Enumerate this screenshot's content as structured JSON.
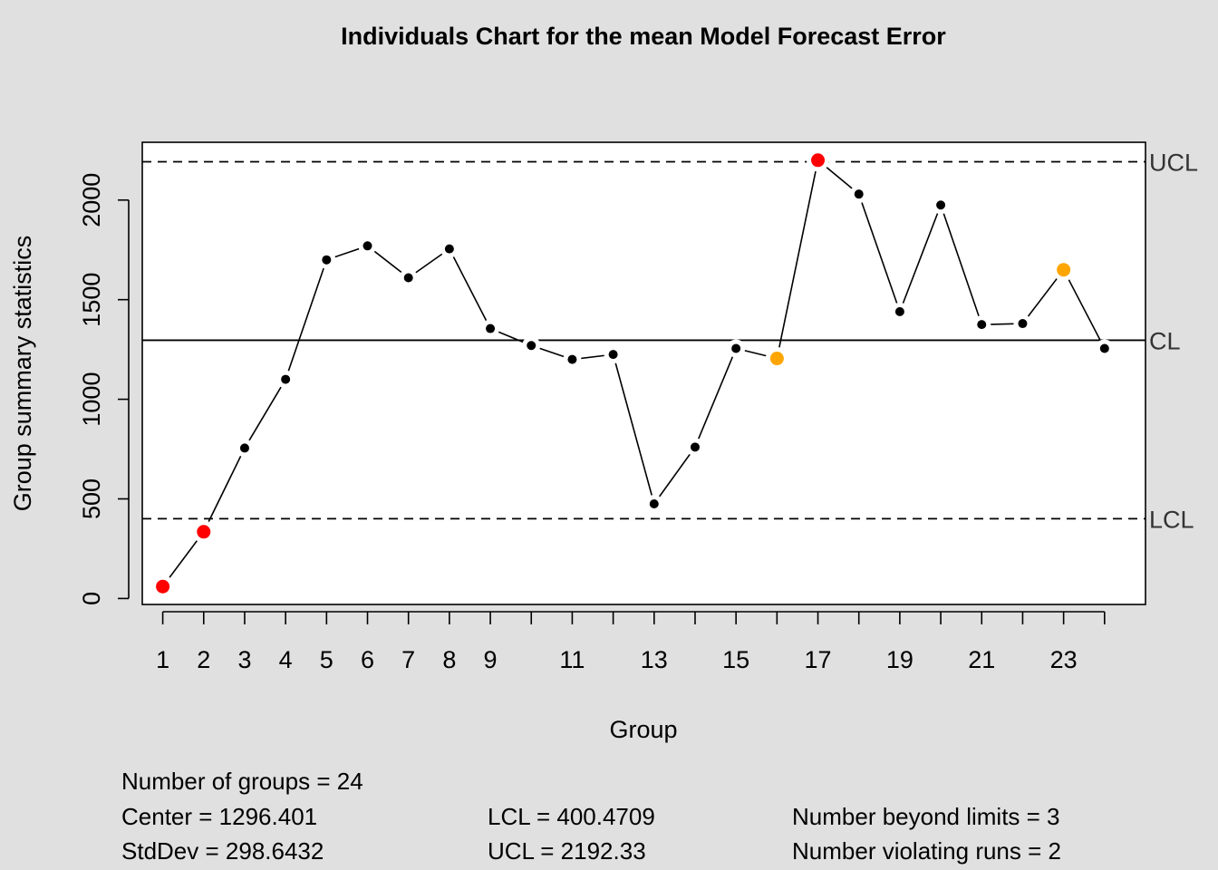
{
  "chart_data": {
    "type": "line",
    "title": "Individuals Chart for the mean Model Forecast Error",
    "xlabel": "Group",
    "ylabel": "Group summary statistics",
    "xlim": [
      0.5,
      25
    ],
    "ylim": [
      -30,
      2290
    ],
    "x": [
      1,
      2,
      3,
      4,
      5,
      6,
      7,
      8,
      9,
      10,
      11,
      12,
      13,
      14,
      15,
      16,
      17,
      18,
      19,
      20,
      21,
      22,
      23,
      24
    ],
    "values": [
      60,
      335,
      755,
      1100,
      1700,
      1770,
      1610,
      1755,
      1355,
      1270,
      1200,
      1225,
      475,
      760,
      1255,
      1205,
      2200,
      2030,
      1440,
      1975,
      1375,
      1380,
      1650,
      1255
    ],
    "point_status": [
      "beyond",
      "beyond",
      "normal",
      "normal",
      "normal",
      "normal",
      "normal",
      "normal",
      "normal",
      "normal",
      "normal",
      "normal",
      "normal",
      "normal",
      "normal",
      "violating",
      "beyond",
      "normal",
      "normal",
      "normal",
      "normal",
      "normal",
      "violating",
      "normal"
    ],
    "x_ticks": [
      1,
      2,
      3,
      4,
      5,
      6,
      7,
      8,
      9,
      10,
      11,
      12,
      13,
      14,
      15,
      16,
      17,
      18,
      19,
      20,
      21,
      22,
      23,
      24
    ],
    "x_tick_labels": [
      "1",
      "2",
      "3",
      "4",
      "5",
      "6",
      "7",
      "8",
      "9",
      "",
      "11",
      "",
      "13",
      "",
      "15",
      "",
      "17",
      "",
      "19",
      "",
      "21",
      "",
      "23",
      ""
    ],
    "y_ticks": [
      0,
      500,
      1000,
      1500,
      2000
    ],
    "y_tick_labels": [
      "0",
      "500",
      "1000",
      "1500",
      "2000"
    ],
    "control_lines": [
      {
        "label": "UCL",
        "value": 2192.33,
        "style": "dashed"
      },
      {
        "label": "CL",
        "value": 1296.401,
        "style": "solid"
      },
      {
        "label": "LCL",
        "value": 400.4709,
        "style": "dashed"
      }
    ],
    "grid": false,
    "colors": {
      "background": "#e0e0e0",
      "plot_bg": "#ffffff",
      "normal": "#000000",
      "beyond": "#ff0000",
      "violating": "#ffa500"
    }
  },
  "stats": {
    "groups": "Number of groups = 24",
    "center": "Center = 1296.401",
    "stddev": "StdDev = 298.6432",
    "lcl": "LCL = 400.4709",
    "ucl": "UCL = 2192.33",
    "beyond": "Number beyond limits = 3",
    "violating": "Number violating runs = 2"
  }
}
